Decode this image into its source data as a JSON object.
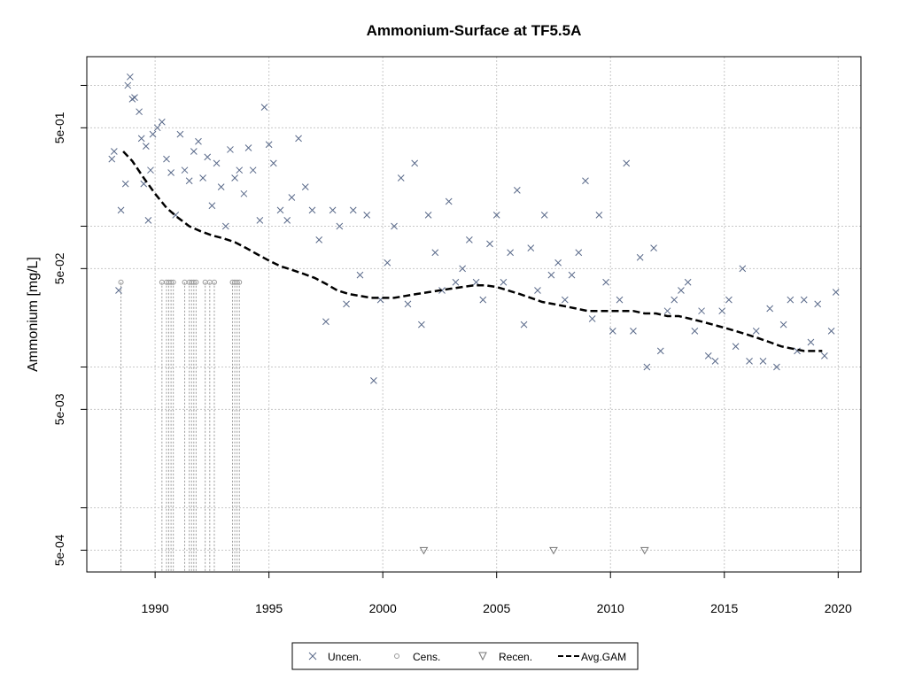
{
  "chart_data": {
    "type": "scatter",
    "title": "Ammonium-Surface at TF5.5A",
    "xlabel": "",
    "ylabel": "Ammonium [mg/L]",
    "x_axis": {
      "range": [
        1987.0,
        2021.0
      ],
      "ticks": [
        1990,
        1995,
        2000,
        2005,
        2010,
        2015,
        2020
      ]
    },
    "y_axis": {
      "scale": "log",
      "range": [
        0.00035,
        1.6
      ],
      "tick_values": [
        0.0005,
        0.005,
        0.05,
        0.5
      ],
      "tick_labels": [
        "5e-04",
        "5e-03",
        "5e-02",
        "5e-01"
      ],
      "grid_values": [
        0.0005,
        0.001,
        0.005,
        0.01,
        0.05,
        0.1,
        0.5,
        1
      ]
    },
    "grid": true,
    "legend_position": "bottom-center",
    "colors": {
      "uncensored": "#5a6a8a",
      "censored": "#999999",
      "gam": "#000000",
      "grid": "#c8c8c8"
    },
    "series": [
      {
        "name": "Uncen.",
        "marker": "x",
        "points": [
          [
            1988.1,
            0.3
          ],
          [
            1988.2,
            0.34
          ],
          [
            1988.4,
            0.035
          ],
          [
            1988.5,
            0.13
          ],
          [
            1988.7,
            0.2
          ],
          [
            1988.8,
            1.0
          ],
          [
            1988.9,
            1.15
          ],
          [
            1989.0,
            0.8
          ],
          [
            1989.1,
            0.82
          ],
          [
            1989.3,
            0.65
          ],
          [
            1989.4,
            0.42
          ],
          [
            1989.5,
            0.2
          ],
          [
            1989.6,
            0.37
          ],
          [
            1989.7,
            0.11
          ],
          [
            1989.8,
            0.25
          ],
          [
            1989.9,
            0.45
          ],
          [
            1990.1,
            0.5
          ],
          [
            1990.3,
            0.55
          ],
          [
            1990.5,
            0.3
          ],
          [
            1990.7,
            0.24
          ],
          [
            1990.9,
            0.12
          ],
          [
            1991.1,
            0.45
          ],
          [
            1991.3,
            0.25
          ],
          [
            1991.5,
            0.21
          ],
          [
            1991.7,
            0.34
          ],
          [
            1991.9,
            0.4
          ],
          [
            1992.1,
            0.22
          ],
          [
            1992.3,
            0.31
          ],
          [
            1992.5,
            0.14
          ],
          [
            1992.7,
            0.28
          ],
          [
            1992.9,
            0.19
          ],
          [
            1993.1,
            0.1
          ],
          [
            1993.3,
            0.35
          ],
          [
            1993.5,
            0.22
          ],
          [
            1993.7,
            0.25
          ],
          [
            1993.9,
            0.17
          ],
          [
            1994.1,
            0.36
          ],
          [
            1994.3,
            0.25
          ],
          [
            1994.6,
            0.11
          ],
          [
            1994.8,
            0.7
          ],
          [
            1995.0,
            0.38
          ],
          [
            1995.2,
            0.28
          ],
          [
            1995.5,
            0.13
          ],
          [
            1995.8,
            0.11
          ],
          [
            1996.0,
            0.16
          ],
          [
            1996.3,
            0.42
          ],
          [
            1996.6,
            0.19
          ],
          [
            1996.9,
            0.13
          ],
          [
            1997.2,
            0.08
          ],
          [
            1997.5,
            0.021
          ],
          [
            1997.8,
            0.13
          ],
          [
            1998.1,
            0.1
          ],
          [
            1998.4,
            0.028
          ],
          [
            1998.7,
            0.13
          ],
          [
            1999.0,
            0.045
          ],
          [
            1999.3,
            0.12
          ],
          [
            1999.6,
            0.008
          ],
          [
            1999.9,
            0.03
          ],
          [
            2000.2,
            0.055
          ],
          [
            2000.5,
            0.1
          ],
          [
            2000.8,
            0.22
          ],
          [
            2001.1,
            0.028
          ],
          [
            2001.4,
            0.28
          ],
          [
            2001.7,
            0.02
          ],
          [
            2002.0,
            0.12
          ],
          [
            2002.3,
            0.065
          ],
          [
            2002.6,
            0.035
          ],
          [
            2002.9,
            0.15
          ],
          [
            2003.2,
            0.04
          ],
          [
            2003.5,
            0.05
          ],
          [
            2003.8,
            0.08
          ],
          [
            2004.1,
            0.04
          ],
          [
            2004.4,
            0.03
          ],
          [
            2004.7,
            0.075
          ],
          [
            2005.0,
            0.12
          ],
          [
            2005.3,
            0.04
          ],
          [
            2005.6,
            0.065
          ],
          [
            2005.9,
            0.18
          ],
          [
            2006.2,
            0.02
          ],
          [
            2006.5,
            0.07
          ],
          [
            2006.8,
            0.035
          ],
          [
            2007.1,
            0.12
          ],
          [
            2007.4,
            0.045
          ],
          [
            2007.7,
            0.055
          ],
          [
            2008.0,
            0.03
          ],
          [
            2008.3,
            0.045
          ],
          [
            2008.6,
            0.065
          ],
          [
            2008.9,
            0.21
          ],
          [
            2009.2,
            0.022
          ],
          [
            2009.5,
            0.12
          ],
          [
            2009.8,
            0.04
          ],
          [
            2010.1,
            0.018
          ],
          [
            2010.4,
            0.03
          ],
          [
            2010.7,
            0.28
          ],
          [
            2011.0,
            0.018
          ],
          [
            2011.3,
            0.06
          ],
          [
            2011.6,
            0.01
          ],
          [
            2011.9,
            0.07
          ],
          [
            2012.2,
            0.013
          ],
          [
            2012.5,
            0.025
          ],
          [
            2012.8,
            0.03
          ],
          [
            2013.1,
            0.035
          ],
          [
            2013.4,
            0.04
          ],
          [
            2013.7,
            0.018
          ],
          [
            2014.0,
            0.025
          ],
          [
            2014.3,
            0.012
          ],
          [
            2014.6,
            0.011
          ],
          [
            2014.9,
            0.025
          ],
          [
            2015.2,
            0.03
          ],
          [
            2015.5,
            0.014
          ],
          [
            2015.8,
            0.05
          ],
          [
            2016.1,
            0.011
          ],
          [
            2016.4,
            0.018
          ],
          [
            2016.7,
            0.011
          ],
          [
            2017.0,
            0.026
          ],
          [
            2017.3,
            0.01
          ],
          [
            2017.6,
            0.02
          ],
          [
            2017.9,
            0.03
          ],
          [
            2018.2,
            0.013
          ],
          [
            2018.5,
            0.03
          ],
          [
            2018.8,
            0.015
          ],
          [
            2019.1,
            0.028
          ],
          [
            2019.4,
            0.012
          ],
          [
            2019.7,
            0.018
          ],
          [
            2019.9,
            0.034
          ]
        ]
      },
      {
        "name": "Cens.",
        "marker": "o",
        "points": [
          [
            1988.5,
            0.04
          ],
          [
            1990.3,
            0.04
          ],
          [
            1990.5,
            0.04
          ],
          [
            1990.6,
            0.04
          ],
          [
            1990.7,
            0.04
          ],
          [
            1990.8,
            0.04
          ],
          [
            1991.3,
            0.04
          ],
          [
            1991.5,
            0.04
          ],
          [
            1991.6,
            0.04
          ],
          [
            1991.7,
            0.04
          ],
          [
            1991.8,
            0.04
          ],
          [
            1992.2,
            0.04
          ],
          [
            1992.4,
            0.04
          ],
          [
            1992.6,
            0.04
          ],
          [
            1993.4,
            0.04
          ],
          [
            1993.5,
            0.04
          ],
          [
            1993.6,
            0.04
          ],
          [
            1993.7,
            0.04
          ]
        ]
      },
      {
        "name": "Recen.",
        "marker": "triangle-down",
        "points": [
          [
            2001.8,
            0.0005
          ],
          [
            2007.5,
            0.0005
          ],
          [
            2011.5,
            0.0005
          ]
        ]
      }
    ],
    "gam": {
      "name": "Avg.GAM",
      "points": [
        [
          1988.6,
          0.34
        ],
        [
          1989.0,
          0.29
        ],
        [
          1989.5,
          0.22
        ],
        [
          1990.0,
          0.17
        ],
        [
          1990.5,
          0.135
        ],
        [
          1991.0,
          0.115
        ],
        [
          1991.5,
          0.1
        ],
        [
          1992.0,
          0.092
        ],
        [
          1992.5,
          0.086
        ],
        [
          1993.0,
          0.082
        ],
        [
          1993.5,
          0.077
        ],
        [
          1994.0,
          0.07
        ],
        [
          1994.5,
          0.063
        ],
        [
          1995.0,
          0.057
        ],
        [
          1995.5,
          0.052
        ],
        [
          1996.0,
          0.049
        ],
        [
          1996.5,
          0.046
        ],
        [
          1997.0,
          0.043
        ],
        [
          1997.5,
          0.039
        ],
        [
          1998.0,
          0.035
        ],
        [
          1998.5,
          0.033
        ],
        [
          1999.0,
          0.032
        ],
        [
          1999.5,
          0.031
        ],
        [
          2000.0,
          0.031
        ],
        [
          2000.5,
          0.031
        ],
        [
          2001.0,
          0.032
        ],
        [
          2001.5,
          0.033
        ],
        [
          2002.0,
          0.034
        ],
        [
          2002.5,
          0.035
        ],
        [
          2003.0,
          0.036
        ],
        [
          2003.5,
          0.037
        ],
        [
          2004.0,
          0.038
        ],
        [
          2004.5,
          0.038
        ],
        [
          2005.0,
          0.037
        ],
        [
          2005.5,
          0.035
        ],
        [
          2006.0,
          0.033
        ],
        [
          2006.5,
          0.031
        ],
        [
          2007.0,
          0.029
        ],
        [
          2007.5,
          0.028
        ],
        [
          2008.0,
          0.027
        ],
        [
          2008.5,
          0.026
        ],
        [
          2009.0,
          0.025
        ],
        [
          2009.5,
          0.025
        ],
        [
          2010.0,
          0.025
        ],
        [
          2010.5,
          0.025
        ],
        [
          2011.0,
          0.025
        ],
        [
          2011.5,
          0.024
        ],
        [
          2012.0,
          0.024
        ],
        [
          2012.5,
          0.023
        ],
        [
          2013.0,
          0.023
        ],
        [
          2013.5,
          0.022
        ],
        [
          2014.0,
          0.021
        ],
        [
          2014.5,
          0.02
        ],
        [
          2015.0,
          0.019
        ],
        [
          2015.5,
          0.018
        ],
        [
          2016.0,
          0.017
        ],
        [
          2016.5,
          0.016
        ],
        [
          2017.0,
          0.015
        ],
        [
          2017.5,
          0.014
        ],
        [
          2018.0,
          0.0135
        ],
        [
          2018.5,
          0.013
        ],
        [
          2019.0,
          0.013
        ],
        [
          2019.3,
          0.013
        ]
      ]
    },
    "legend": [
      "Uncen.",
      "Cens.",
      "Recen.",
      "Avg.GAM"
    ]
  }
}
